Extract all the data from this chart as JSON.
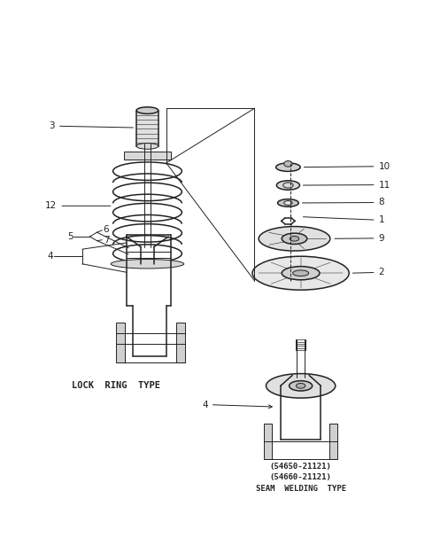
{
  "bg_color": "#ffffff",
  "line_color": "#222222",
  "lock_ring_label": "LOCK  RING  TYPE",
  "seam_weld_line1": "(54650-21121)",
  "seam_weld_line2": "(54660-21121)",
  "seam_weld_line3": "SEAM  WELDING  TYPE"
}
